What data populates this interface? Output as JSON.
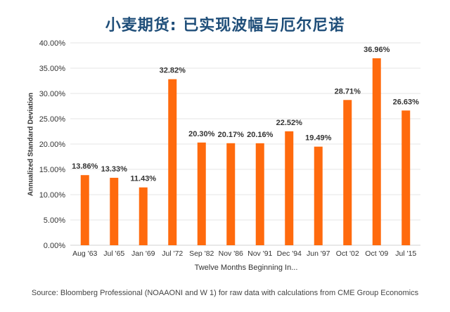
{
  "chart_data": {
    "type": "bar",
    "title": "小麦期货: 已实现波幅与厄尔尼诺",
    "xlabel": "Twelve Months Beginning In...",
    "ylabel": "Annualized Standard Deviation",
    "categories": [
      "Aug '63",
      "Jul '65",
      "Jan '69",
      "Jul '72",
      "Sep '82",
      "Nov '86",
      "Nov '91",
      "Dec '94",
      "Jun '97",
      "Oct '02",
      "Oct '09",
      "Jul '15"
    ],
    "values": [
      13.86,
      13.33,
      11.43,
      32.82,
      20.3,
      20.17,
      20.16,
      22.52,
      19.49,
      28.71,
      36.96,
      26.63
    ],
    "data_labels": [
      "13.86%",
      "13.33%",
      "11.43%",
      "32.82%",
      "20.30%",
      "20.17%",
      "20.16%",
      "22.52%",
      "19.49%",
      "28.71%",
      "36.96%",
      "26.63%"
    ],
    "yticks": [
      "0.00%",
      "5.00%",
      "10.00%",
      "15.00%",
      "20.00%",
      "25.00%",
      "30.00%",
      "35.00%",
      "40.00%"
    ],
    "ylim": [
      0,
      40
    ],
    "grid": true,
    "bar_color": "#ff6a0d",
    "title_color": "#1f4e79"
  },
  "source": "Source: Bloomberg Professional (NOAAONI and W 1) for raw data with calculations from CME Group Economics"
}
